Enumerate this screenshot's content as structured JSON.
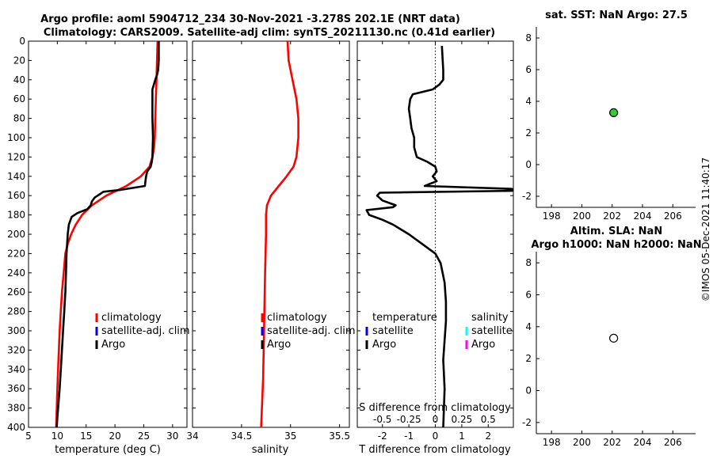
{
  "header": {
    "title_line1": "Argo profile: aoml 5904712_234 30-Nov-2021 -3.278S 202.1E (NRT data)",
    "title_line2": "Climatology: CARS2009. Satellite-adj clim: synTS_20211130.nc (0.41d earlier)"
  },
  "timestamp": "©IMOS 05-Dec-2021 11:40:17",
  "colors": {
    "climatology": "#ff0000",
    "satellite": "#0000ff",
    "argo": "#000000",
    "salinity_satellite": "#00ffff",
    "salinity_argo": "#ff00ff",
    "marker_green": "#33cc33"
  },
  "chart_data": [
    {
      "type": "line",
      "id": "temperature",
      "xlabel": "temperature (deg C)",
      "ylabel": "",
      "xlim": [
        5,
        32.5
      ],
      "ylim": [
        0,
        400
      ],
      "y_reversed": true,
      "x_ticks": [
        5,
        10,
        15,
        20,
        25,
        30
      ],
      "y_ticks": [
        0,
        20,
        40,
        60,
        80,
        100,
        120,
        140,
        160,
        180,
        200,
        220,
        240,
        260,
        280,
        300,
        320,
        340,
        360,
        380,
        400
      ],
      "legend": [
        "climatology",
        "satellite-adj. clim",
        "Argo"
      ],
      "series": [
        {
          "name": "climatology",
          "color": "#ff0000",
          "x": [
            27.4,
            27.3,
            27.2,
            27.1,
            27.0,
            26.9,
            26.8,
            26.5,
            26.0,
            24.5,
            22.0,
            18.5,
            16.0,
            14.3,
            13.2,
            12.4,
            11.8,
            11.4,
            11.1,
            10.8,
            10.6,
            10.4,
            10.2,
            10.0,
            9.8
          ],
          "depth": [
            0,
            20,
            40,
            60,
            80,
            100,
            110,
            120,
            130,
            140,
            150,
            160,
            170,
            180,
            190,
            200,
            210,
            220,
            240,
            260,
            280,
            300,
            330,
            360,
            400
          ]
        },
        {
          "name": "Argo",
          "color": "#000000",
          "x": [
            27.6,
            27.6,
            27.5,
            27.3,
            27.0,
            26.5,
            26.5,
            26.5,
            26.6,
            26.5,
            26.4,
            26.2,
            25.6,
            25.4,
            25.3,
            25.2,
            21.0,
            18.0,
            17.5,
            16.5,
            16.0,
            15.8,
            15.2,
            13.5,
            12.5,
            12.0,
            11.8,
            11.6,
            11.5,
            11.4,
            11.2,
            11.0,
            10.7,
            10.4,
            10.0,
            9.9
          ],
          "depth": [
            0,
            20,
            30,
            35,
            40,
            50,
            60,
            80,
            100,
            120,
            125,
            130,
            135,
            140,
            145,
            150,
            154,
            156,
            158,
            162,
            166,
            170,
            174,
            178,
            182,
            190,
            200,
            220,
            240,
            260,
            280,
            300,
            330,
            360,
            390,
            400
          ]
        }
      ]
    },
    {
      "type": "line",
      "id": "salinity",
      "xlabel": "salinity",
      "xlim": [
        34,
        35.6
      ],
      "ylim": [
        0,
        400
      ],
      "y_reversed": true,
      "x_ticks": [
        34,
        34.5,
        35,
        35.5
      ],
      "legend": [
        "climatology",
        "satellite-adj. clim",
        "Argo"
      ],
      "series": [
        {
          "name": "climatology",
          "color": "#ff0000",
          "x": [
            34.97,
            34.98,
            35.02,
            35.06,
            35.08,
            35.08,
            35.06,
            35.03,
            34.96,
            34.88,
            34.8,
            34.76,
            34.75,
            34.75,
            34.74,
            34.73,
            34.72,
            34.7
          ],
          "depth": [
            0,
            20,
            40,
            60,
            80,
            100,
            120,
            130,
            140,
            150,
            160,
            170,
            180,
            200,
            240,
            300,
            350,
            400
          ]
        }
      ]
    },
    {
      "type": "line",
      "id": "difference",
      "xlabel": "T difference from climatology",
      "xlabel2": "S difference from climatology",
      "xlim": [
        -2.95,
        2.95
      ],
      "ylim": [
        0,
        400
      ],
      "y_reversed": true,
      "x_ticks": [
        "-2",
        "-1",
        "0",
        "1",
        "2"
      ],
      "x_ticks_top": [
        "-0.5",
        "-0.25",
        "0",
        "0.25",
        "0.5"
      ],
      "legend_t": {
        "title": "temperature",
        "items": [
          "satellite",
          "Argo"
        ]
      },
      "legend_s": {
        "title": "salinity",
        "items": [
          "satellite",
          "Argo"
        ]
      },
      "series": [
        {
          "name": "Argo T difference",
          "color": "#000000",
          "x": [
            0.25,
            0.28,
            0.3,
            0.3,
            0.15,
            -0.1,
            -0.85,
            -0.95,
            -1.0,
            -0.95,
            -0.9,
            -0.8,
            -0.8,
            -0.7,
            -0.3,
            0,
            0.05,
            -0.1,
            0.05,
            -0.4,
            2.9,
            2.9,
            -2.1,
            -2.2,
            -2.0,
            -1.5,
            -1.6,
            -2.6,
            -2.5,
            -2.0,
            -1.6,
            -1.0,
            -0.5,
            0,
            0.2,
            0.35,
            0.4,
            0.4,
            0.35,
            0.3,
            0.35,
            0.3
          ],
          "depth": [
            5,
            20,
            30,
            40,
            45,
            50,
            55,
            60,
            70,
            80,
            90,
            100,
            110,
            120,
            125,
            130,
            135,
            140,
            145,
            150,
            153,
            155,
            157,
            160,
            165,
            170,
            172,
            175,
            180,
            185,
            190,
            200,
            210,
            220,
            230,
            250,
            270,
            290,
            310,
            330,
            360,
            400
          ]
        }
      ]
    },
    {
      "type": "scatter",
      "id": "sst",
      "title": "sat. SST: NaN Argo: 27.5",
      "xlim": [
        197,
        207.5
      ],
      "ylim": [
        -2.7,
        8.7
      ],
      "x_ticks": [
        198,
        200,
        202,
        204,
        206
      ],
      "y_ticks": [
        -2,
        0,
        2,
        4,
        6,
        8
      ],
      "points": [
        {
          "x": 202.1,
          "y": 3.28,
          "fill": "#33cc33"
        }
      ]
    },
    {
      "type": "scatter",
      "id": "sla",
      "title_line1": "Altim. SLA: NaN",
      "title_line2": "Argo h1000: NaN h2000: NaN",
      "xlim": [
        197,
        207.5
      ],
      "ylim": [
        -2.7,
        8.7
      ],
      "x_ticks": [
        198,
        200,
        202,
        204,
        206
      ],
      "y_ticks": [
        -2,
        0,
        2,
        4,
        6,
        8
      ],
      "points": [
        {
          "x": 202.1,
          "y": 3.28,
          "fill": "#ffffff"
        }
      ]
    }
  ]
}
